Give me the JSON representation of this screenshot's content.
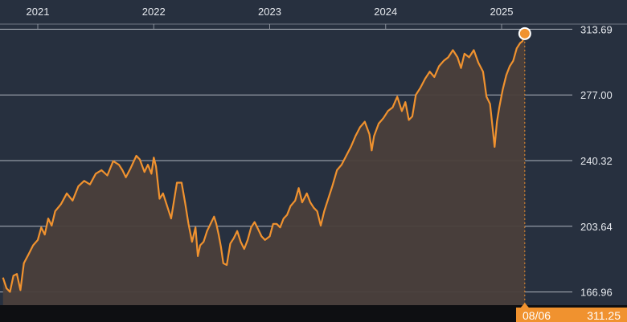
{
  "chart_data": {
    "type": "area",
    "x_years": [
      "2021",
      "2022",
      "2023",
      "2024",
      "2025"
    ],
    "y_ticks": [
      "313.69",
      "277.00",
      "240.32",
      "203.64",
      "166.96"
    ],
    "y_tick_values": [
      313.69,
      277.0,
      240.32,
      203.64,
      166.96
    ],
    "ylim": [
      159.6,
      330.0
    ],
    "xlim": [
      2020.7,
      2025.95
    ],
    "grid": "horizontal",
    "series": [
      {
        "points": [
          [
            2020.7,
            175
          ],
          [
            2020.73,
            169
          ],
          [
            2020.76,
            167
          ],
          [
            2020.79,
            176
          ],
          [
            2020.82,
            177
          ],
          [
            2020.85,
            168
          ],
          [
            2020.88,
            183
          ],
          [
            2020.92,
            188
          ],
          [
            2020.96,
            193
          ],
          [
            2021.0,
            196
          ],
          [
            2021.03,
            203
          ],
          [
            2021.06,
            199
          ],
          [
            2021.09,
            208
          ],
          [
            2021.12,
            204
          ],
          [
            2021.15,
            212
          ],
          [
            2021.2,
            216
          ],
          [
            2021.25,
            222
          ],
          [
            2021.3,
            218
          ],
          [
            2021.35,
            226
          ],
          [
            2021.4,
            229
          ],
          [
            2021.45,
            227
          ],
          [
            2021.5,
            233
          ],
          [
            2021.55,
            235
          ],
          [
            2021.6,
            232
          ],
          [
            2021.65,
            240
          ],
          [
            2021.7,
            238
          ],
          [
            2021.73,
            235
          ],
          [
            2021.76,
            231
          ],
          [
            2021.8,
            236
          ],
          [
            2021.85,
            243
          ],
          [
            2021.88,
            241
          ],
          [
            2021.92,
            234
          ],
          [
            2021.95,
            238
          ],
          [
            2021.98,
            233
          ],
          [
            2022.0,
            242
          ],
          [
            2022.02,
            237
          ],
          [
            2022.05,
            219
          ],
          [
            2022.08,
            222
          ],
          [
            2022.12,
            214
          ],
          [
            2022.15,
            208
          ],
          [
            2022.2,
            228
          ],
          [
            2022.24,
            228
          ],
          [
            2022.27,
            217
          ],
          [
            2022.3,
            205
          ],
          [
            2022.33,
            195
          ],
          [
            2022.36,
            203
          ],
          [
            2022.38,
            187
          ],
          [
            2022.4,
            193
          ],
          [
            2022.43,
            195
          ],
          [
            2022.46,
            201
          ],
          [
            2022.49,
            205
          ],
          [
            2022.52,
            209
          ],
          [
            2022.54,
            205
          ],
          [
            2022.56,
            199
          ],
          [
            2022.58,
            192
          ],
          [
            2022.6,
            183
          ],
          [
            2022.63,
            182
          ],
          [
            2022.66,
            194
          ],
          [
            2022.69,
            197
          ],
          [
            2022.72,
            201
          ],
          [
            2022.75,
            195
          ],
          [
            2022.78,
            191
          ],
          [
            2022.81,
            196
          ],
          [
            2022.84,
            203
          ],
          [
            2022.87,
            206
          ],
          [
            2022.9,
            202
          ],
          [
            2022.93,
            198
          ],
          [
            2022.96,
            196
          ],
          [
            2023.0,
            198
          ],
          [
            2023.03,
            205
          ],
          [
            2023.06,
            205
          ],
          [
            2023.09,
            203
          ],
          [
            2023.12,
            208
          ],
          [
            2023.15,
            210
          ],
          [
            2023.18,
            215
          ],
          [
            2023.22,
            218
          ],
          [
            2023.25,
            225
          ],
          [
            2023.28,
            217
          ],
          [
            2023.32,
            222
          ],
          [
            2023.35,
            217
          ],
          [
            2023.38,
            214
          ],
          [
            2023.41,
            212
          ],
          [
            2023.44,
            204
          ],
          [
            2023.47,
            212
          ],
          [
            2023.5,
            218
          ],
          [
            2023.54,
            226
          ],
          [
            2023.58,
            235
          ],
          [
            2023.62,
            238
          ],
          [
            2023.66,
            243
          ],
          [
            2023.7,
            248
          ],
          [
            2023.74,
            254
          ],
          [
            2023.78,
            259
          ],
          [
            2023.82,
            262
          ],
          [
            2023.86,
            255
          ],
          [
            2023.88,
            246
          ],
          [
            2023.9,
            254
          ],
          [
            2023.94,
            261
          ],
          [
            2023.98,
            264
          ],
          [
            2024.02,
            268
          ],
          [
            2024.06,
            270
          ],
          [
            2024.1,
            276
          ],
          [
            2024.14,
            268
          ],
          [
            2024.17,
            273
          ],
          [
            2024.2,
            263
          ],
          [
            2024.23,
            265
          ],
          [
            2024.26,
            277
          ],
          [
            2024.3,
            281
          ],
          [
            2024.34,
            286
          ],
          [
            2024.38,
            290
          ],
          [
            2024.42,
            287
          ],
          [
            2024.46,
            293
          ],
          [
            2024.5,
            296
          ],
          [
            2024.54,
            298
          ],
          [
            2024.58,
            302
          ],
          [
            2024.62,
            298
          ],
          [
            2024.65,
            292
          ],
          [
            2024.68,
            300
          ],
          [
            2024.72,
            298
          ],
          [
            2024.76,
            302
          ],
          [
            2024.8,
            295
          ],
          [
            2024.84,
            290
          ],
          [
            2024.87,
            276
          ],
          [
            2024.9,
            272
          ],
          [
            2024.92,
            260
          ],
          [
            2024.94,
            248
          ],
          [
            2024.96,
            262
          ],
          [
            2024.98,
            270
          ],
          [
            2025.01,
            280
          ],
          [
            2025.04,
            288
          ],
          [
            2025.07,
            293
          ],
          [
            2025.1,
            296
          ],
          [
            2025.13,
            303
          ],
          [
            2025.16,
            306
          ],
          [
            2025.18,
            307
          ],
          [
            2025.2,
            311.25
          ]
        ]
      }
    ],
    "colors": {
      "line": "#f0922f",
      "area": "#4a3f3b",
      "grid": "#aeb3bd",
      "background": "#27303f",
      "readout_bg": "#f0922f"
    }
  },
  "readout": {
    "date": "08/06",
    "value": "311.25"
  }
}
